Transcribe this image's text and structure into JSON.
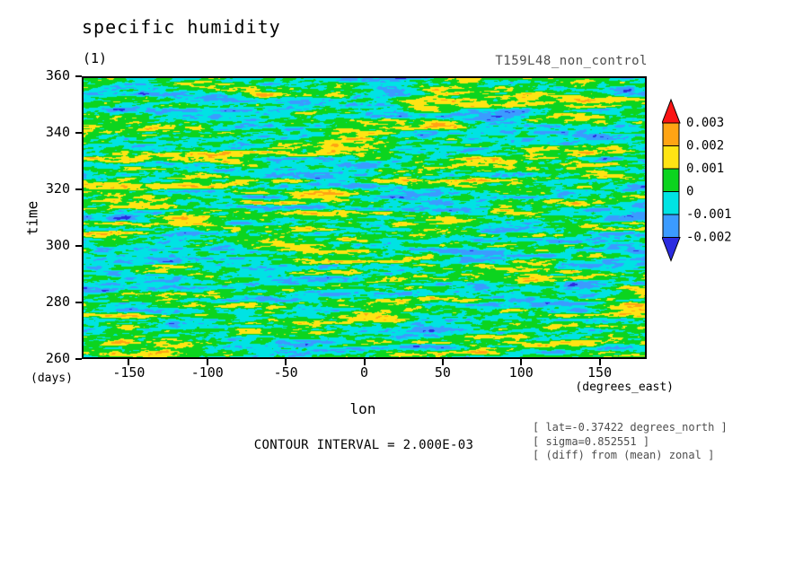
{
  "title": "specific humidity",
  "subtitle": "(1)",
  "run_label": "T159L48_non_control",
  "contour_note": "CONTOUR INTERVAL = 2.000E-03",
  "annotations": [
    "[ lat=-0.37422 degrees_north ]",
    "[ sigma=0.852551 ]",
    "[ (diff) from (mean) zonal ]"
  ],
  "chart_data": {
    "type": "heatmap",
    "title": "specific humidity",
    "plot_id": "(1)",
    "experiment": "T159L48_non_control",
    "xlabel": "lon",
    "x_unit": "(degrees_east)",
    "ylabel": "time",
    "y_unit": "(days)",
    "xlim": [
      -180,
      180
    ],
    "ylim": [
      260,
      360
    ],
    "x_ticks": [
      -150,
      -100,
      -50,
      0,
      50,
      100,
      150
    ],
    "y_ticks": [
      360,
      340,
      320,
      300,
      280,
      260
    ],
    "contour_interval": "2.000E-03",
    "levels": [
      -0.002,
      -0.001,
      0,
      0.001,
      0.002,
      0.003
    ],
    "palette_low_to_high": [
      "#2b2be0",
      "#3b9bff",
      "#00e3e3",
      "#0cd41f",
      "#ffe414",
      "#ffa414",
      "#fb1414"
    ],
    "field_summary": "zonally elongated specific-humidity anomaly streaks (diff from zonal mean); values mostly between -0.001 and 0.001 (green/cyan) with scattered yellow/blue bands reaching +/-0.002 and rare orange/dark-blue extremes",
    "grid": false,
    "legend_position": "right"
  },
  "colorbar": {
    "labels": [
      "0.003",
      "0.002",
      "0.001",
      "0",
      "-0.001",
      "-0.002"
    ],
    "box_colors_top_to_bottom": [
      "#ffa414",
      "#ffe414",
      "#0cd41f",
      "#00e3e3",
      "#3b9bff"
    ],
    "arrow_up_color": "#fb1414",
    "arrow_down_color": "#2b2be0"
  }
}
